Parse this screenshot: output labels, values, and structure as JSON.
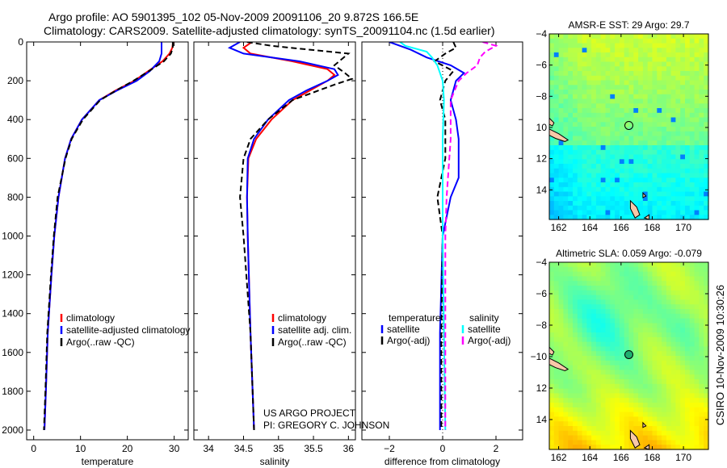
{
  "title_line1": "Argo profile: AO 5901395_102 05-Nov-2009 20091106_20 9.872S 166.5E",
  "title_line2": "Climatology: CARS2009. Satellite-adjusted climatology: synTS_20091104.nc (1.5d earlier)",
  "credit_line1": "US ARGO PROJECT",
  "credit_line2": "PI: GREGORY C. JOHNSON",
  "timestamp": "CSIRO 10-Nov-2009 10:30:26",
  "colors": {
    "climatology": "#ff0000",
    "satellite": "#0000ff",
    "argo": "#000000",
    "sal_satellite": "#00ffff",
    "sal_argo": "#ff00ff"
  },
  "chart_data": [
    {
      "type": "line",
      "xlabel": "temperature",
      "ylabel": "",
      "xlim": [
        -1.5,
        33
      ],
      "ylim": [
        2050,
        0
      ],
      "xticks": [
        0,
        10,
        20,
        30
      ],
      "yticks": [
        0,
        200,
        400,
        600,
        800,
        1000,
        1200,
        1400,
        1600,
        1800,
        2000
      ],
      "legend": [
        "climatology",
        "satellite-adjusted climatology",
        "Argo(..raw -QC)"
      ],
      "legend_position": "lower-middle",
      "series": [
        {
          "name": "climatology",
          "depth": [
            0,
            30,
            60,
            100,
            150,
            200,
            250,
            300,
            400,
            500,
            600,
            800,
            1000,
            1200,
            1500,
            1800,
            2000
          ],
          "values": [
            29.8,
            29.6,
            29.0,
            27.5,
            24.5,
            21.5,
            17.5,
            14.0,
            10.3,
            8.0,
            6.7,
            5.3,
            4.4,
            3.8,
            3.0,
            2.6,
            2.3
          ]
        },
        {
          "name": "satellite-adjusted climatology",
          "depth": [
            0,
            30,
            60,
            100,
            150,
            200,
            250,
            300,
            400,
            500,
            600,
            800,
            1000,
            1200,
            1500,
            1800,
            2000
          ],
          "values": [
            27.3,
            27.3,
            27.3,
            26.8,
            24.8,
            22.0,
            17.8,
            14.0,
            10.3,
            8.0,
            6.7,
            5.3,
            4.4,
            3.8,
            3.0,
            2.6,
            2.3
          ]
        },
        {
          "name": "Argo(..raw -QC)",
          "depth": [
            0,
            30,
            60,
            100,
            150,
            200,
            250,
            300,
            400,
            500,
            600,
            800,
            1000,
            1200,
            1500,
            1800,
            2000
          ],
          "values": [
            29.7,
            29.7,
            29.3,
            27.8,
            24.6,
            21.3,
            17.6,
            14.2,
            10.5,
            8.1,
            6.8,
            5.1,
            4.3,
            3.7,
            2.9,
            2.5,
            2.2
          ]
        }
      ]
    },
    {
      "type": "line",
      "xlabel": "salinity",
      "xlim": [
        33.79,
        36.1
      ],
      "ylim": [
        2050,
        0
      ],
      "xticks": [
        34,
        34.5,
        35,
        35.5,
        36
      ],
      "legend": [
        "climatology",
        "satellite adj. clim.",
        "Argo(..raw -QC)"
      ],
      "legend_position": "lower-middle",
      "series": [
        {
          "name": "climatology",
          "depth": [
            0,
            30,
            60,
            100,
            140,
            170,
            200,
            250,
            300,
            400,
            500,
            600,
            800,
            1000,
            1500,
            2000
          ],
          "values": [
            34.62,
            34.5,
            34.6,
            35.2,
            35.7,
            35.8,
            35.7,
            35.45,
            35.2,
            34.9,
            34.68,
            34.57,
            34.55,
            34.56,
            34.6,
            34.65
          ]
        },
        {
          "name": "satellite adj. clim.",
          "depth": [
            0,
            30,
            60,
            100,
            140,
            170,
            200,
            250,
            300,
            400,
            500,
            600,
            800,
            1000,
            1500,
            2000
          ],
          "values": [
            34.45,
            34.3,
            34.5,
            35.3,
            35.8,
            35.85,
            35.7,
            35.4,
            35.15,
            34.85,
            34.65,
            34.56,
            34.55,
            34.56,
            34.6,
            34.65
          ]
        },
        {
          "name": "Argo(..raw -QC)",
          "depth": [
            0,
            20,
            60,
            90,
            120,
            160,
            190,
            220,
            260,
            300,
            400,
            500,
            600,
            800,
            1000,
            1500,
            2000
          ],
          "values": [
            34.55,
            34.9,
            36.0,
            35.9,
            35.8,
            35.95,
            36.05,
            35.8,
            35.5,
            35.2,
            34.85,
            34.6,
            34.5,
            34.45,
            34.5,
            34.6,
            34.65
          ]
        }
      ]
    },
    {
      "type": "line",
      "xlabel": "difference from climatology",
      "xlim": [
        -3.03,
        3.0
      ],
      "ylim": [
        2050,
        0
      ],
      "xticks": [
        -2,
        0,
        2
      ],
      "legend": [
        "temperature",
        "satellite",
        "Argo(-adj)",
        "salinity",
        "satellite",
        "Argo(-adj)"
      ],
      "legend_position": "lower-middle",
      "series": [
        {
          "name": "temperature satellite",
          "depth": [
            0,
            40,
            80,
            120,
            160,
            200,
            300,
            400,
            500,
            600,
            700,
            800,
            1000,
            1500,
            2000
          ],
          "values": [
            -2.0,
            -1.2,
            -0.6,
            0.3,
            0.8,
            0.5,
            0.3,
            0.5,
            0.6,
            0.6,
            0.6,
            0.3,
            0.0,
            -0.1,
            -0.1
          ]
        },
        {
          "name": "temperature Argo(-adj)",
          "depth": [
            0,
            30,
            60,
            100,
            150,
            200,
            300,
            400,
            600,
            800,
            1000,
            1500,
            2000
          ],
          "values": [
            0.4,
            0.5,
            0.1,
            -0.3,
            0.4,
            0.1,
            -0.1,
            0.1,
            0.1,
            -0.2,
            0.0,
            -0.05,
            -0.05
          ]
        },
        {
          "name": "salinity satellite",
          "depth": [
            0,
            20,
            50,
            80,
            120,
            200,
            300,
            500,
            800,
            1000,
            1500,
            2000
          ],
          "values": [
            -1.6,
            -1.4,
            -0.6,
            -0.4,
            -0.2,
            0.0,
            0.05,
            0.0,
            0.0,
            0.0,
            0.05,
            0.1
          ]
        },
        {
          "name": "salinity Argo(-adj)",
          "depth": [
            0,
            20,
            50,
            80,
            120,
            160,
            200,
            300,
            500,
            800,
            1000,
            1500,
            2000
          ],
          "values": [
            1.5,
            2.0,
            1.6,
            1.4,
            1.3,
            0.9,
            0.6,
            0.3,
            0.3,
            0.15,
            0.1,
            0.1,
            0.1
          ]
        }
      ]
    },
    {
      "type": "heatmap",
      "title": "AMSR-E SST: 29 Argo: 29.7",
      "xlim": [
        161.4,
        171.6
      ],
      "ylim": [
        -15.9,
        -4
      ],
      "xticks": [
        162,
        164,
        166,
        168,
        170
      ],
      "yticks": [
        -4,
        -6,
        -8,
        -10,
        -12,
        -14
      ],
      "float_position": {
        "lon": 166.5,
        "lat": -9.872
      }
    },
    {
      "type": "heatmap",
      "title": "Altimetric SLA: 0.059 Argo: -0.079",
      "xlim": [
        161.4,
        171.6
      ],
      "ylim": [
        -15.9,
        -4
      ],
      "xticks": [
        162,
        164,
        166,
        168,
        170
      ],
      "yticks": [
        -4,
        -6,
        -8,
        -10,
        -12,
        -14
      ],
      "float_position": {
        "lon": 166.5,
        "lat": -9.872
      }
    }
  ]
}
